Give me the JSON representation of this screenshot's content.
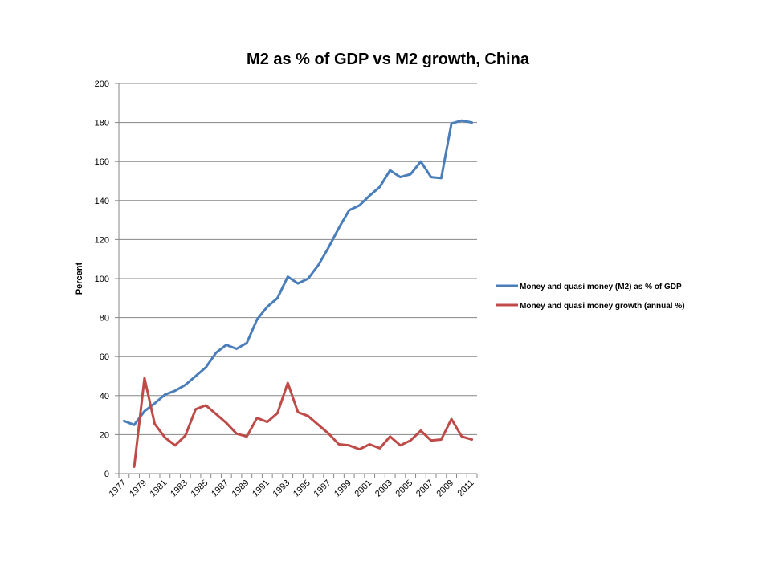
{
  "chart_data": {
    "type": "line",
    "title": "M2 as % of GDP vs M2 growth, China",
    "xlabel": "",
    "ylabel": "Percent",
    "ylim": [
      0,
      200
    ],
    "yticks": [
      0,
      20,
      40,
      60,
      80,
      100,
      120,
      140,
      160,
      180,
      200
    ],
    "grid": true,
    "legend_position": "right",
    "x": [
      1977,
      1978,
      1979,
      1980,
      1981,
      1982,
      1983,
      1984,
      1985,
      1986,
      1987,
      1988,
      1989,
      1990,
      1991,
      1992,
      1993,
      1994,
      1995,
      1996,
      1997,
      1998,
      1999,
      2000,
      2001,
      2002,
      2003,
      2004,
      2005,
      2006,
      2007,
      2008,
      2009,
      2010,
      2011
    ],
    "xtick_labels": [
      "1977",
      "1979",
      "1981",
      "1983",
      "1985",
      "1987",
      "1989",
      "1991",
      "1993",
      "1995",
      "1997",
      "1999",
      "2001",
      "2003",
      "2005",
      "2007",
      "2009",
      "2011"
    ],
    "series": [
      {
        "name": "Money and quasi money (M2) as % of GDP",
        "color": "#4a7ebb",
        "values": [
          27,
          25,
          32,
          36,
          40.5,
          42.5,
          45.5,
          50,
          54.5,
          62,
          66,
          64,
          67,
          79,
          85.5,
          90,
          101,
          97.5,
          100,
          107,
          116,
          126,
          135,
          137.5,
          142.5,
          147,
          155.5,
          152,
          153.5,
          160,
          152,
          151.5,
          179.5,
          181,
          180
        ]
      },
      {
        "name": "Money and quasi money growth (annual %)",
        "color": "#be4b48",
        "values": [
          null,
          3.5,
          49,
          25.5,
          18.5,
          14.5,
          19.5,
          33,
          35,
          30.5,
          26,
          20.5,
          19,
          28.5,
          26.5,
          31,
          46.5,
          31.5,
          29.5,
          25,
          20.5,
          15,
          14.5,
          12.5,
          15,
          13,
          19,
          14.5,
          17,
          22,
          17,
          17.5,
          28,
          19,
          17.5
        ]
      }
    ]
  }
}
